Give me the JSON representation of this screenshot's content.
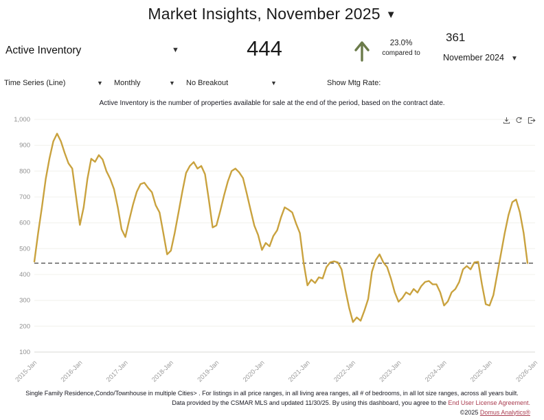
{
  "header": {
    "title": "Market Insights, November 2025"
  },
  "metric": {
    "name": "Active Inventory",
    "value": "444",
    "change_pct": "23.0%",
    "compared_label": "compared to",
    "compare_value": "361",
    "compare_period": "November 2024"
  },
  "controls": {
    "series_type": "Time Series (Line)",
    "frequency": "Monthly",
    "breakout": "No Breakout",
    "mtg_rate_label": "Show Mtg Rate:"
  },
  "description": "Active Inventory is the number of properties available for sale at the end of the period, based on the contract date.",
  "colors": {
    "line": "#C9A23E",
    "arrow_green": "#6B7B4A",
    "link_red": "#A93B4F",
    "reference_line": "#1a1a1a"
  },
  "chart_data": {
    "type": "line",
    "title": "Active Inventory, monthly",
    "xlabel": "",
    "ylabel": "",
    "ylim": [
      100,
      1000
    ],
    "grid": "horizontal",
    "legend": "none",
    "reference_line": 444,
    "start_month": "2015-Jan",
    "end_month": "2025-Nov",
    "tick_labels": [
      "2015-Jan",
      "2016-Jan",
      "2017-Jan",
      "2018-Jan",
      "2019-Jan",
      "2020-Jan",
      "2021-Jan",
      "2022-Jan",
      "2023-Jan",
      "2024-Jan",
      "2025-Jan",
      "2026-Jan"
    ],
    "ytick_labels": [
      "100",
      "200",
      "300",
      "400",
      "500",
      "600",
      "700",
      "800",
      "900",
      "1,000"
    ],
    "series": [
      {
        "name": "Active Inventory",
        "frequency": "monthly",
        "values": [
          450,
          560,
          660,
          770,
          850,
          915,
          945,
          915,
          870,
          830,
          810,
          700,
          592,
          660,
          770,
          848,
          836,
          862,
          845,
          800,
          770,
          730,
          660,
          575,
          545,
          610,
          670,
          720,
          750,
          755,
          735,
          718,
          668,
          640,
          560,
          478,
          492,
          560,
          640,
          720,
          793,
          820,
          835,
          810,
          820,
          788,
          690,
          582,
          590,
          645,
          705,
          760,
          800,
          810,
          795,
          773,
          713,
          650,
          589,
          553,
          495,
          522,
          509,
          549,
          571,
          620,
          660,
          651,
          640,
          597,
          560,
          445,
          358,
          380,
          367,
          389,
          385,
          429,
          447,
          451,
          447,
          420,
          340,
          270,
          216,
          234,
          221,
          260,
          305,
          411,
          456,
          478,
          447,
          429,
          385,
          331,
          295,
          309,
          331,
          322,
          344,
          330,
          355,
          371,
          375,
          362,
          362,
          331,
          280,
          296,
          331,
          344,
          371,
          420,
          433,
          420,
          447,
          449,
          361,
          285,
          280,
          320,
          400,
          480,
          560,
          630,
          680,
          690,
          640,
          560,
          444
        ]
      }
    ]
  },
  "footer": {
    "filters": "Single Family Residence,Condo/Townhouse in multiple Cities> . For listings in all price ranges, in all living area ranges, all # of bedrooms, in all lot size ranges, across all years built.",
    "credit_prefix": "Data provided by the CSMAR MLS and updated 11/30/25.  By using this dashboard, you agree to the ",
    "eula_link": "End User License Agreement.",
    "copyright_text": " ©2025 ",
    "brand_link": "Domus Analytics®"
  }
}
